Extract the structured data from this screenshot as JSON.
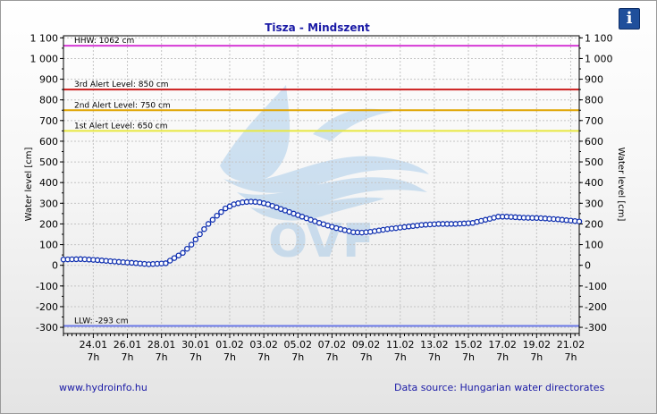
{
  "chart_data": {
    "type": "line",
    "title": "Tisza - Mindszent",
    "ylabel_left": "Water level [cm]",
    "ylabel_right": "Water level [cm]",
    "ylim": [
      -330,
      1110
    ],
    "yticks": [
      -300,
      -200,
      -100,
      0,
      100,
      200,
      300,
      400,
      500,
      600,
      700,
      800,
      900,
      1000,
      1100
    ],
    "ytick_labels": [
      "-300",
      "-200",
      "-100",
      "0",
      "100",
      "200",
      "300",
      "400",
      "500",
      "600",
      "700",
      "800",
      "900",
      "1 000",
      "1 100"
    ],
    "xlim": [
      0,
      30.25
    ],
    "xticks": [
      {
        "x": 1.75,
        "date": "24.01",
        "time": "7h"
      },
      {
        "x": 3.75,
        "date": "26.01",
        "time": "7h"
      },
      {
        "x": 5.75,
        "date": "28.01",
        "time": "7h"
      },
      {
        "x": 7.75,
        "date": "30.01",
        "time": "7h"
      },
      {
        "x": 9.75,
        "date": "01.02",
        "time": "7h"
      },
      {
        "x": 11.75,
        "date": "03.02",
        "time": "7h"
      },
      {
        "x": 13.75,
        "date": "05.02",
        "time": "7h"
      },
      {
        "x": 15.75,
        "date": "07.02",
        "time": "7h"
      },
      {
        "x": 17.75,
        "date": "09.02",
        "time": "7h"
      },
      {
        "x": 19.75,
        "date": "11.02",
        "time": "7h"
      },
      {
        "x": 21.75,
        "date": "13.02",
        "time": "7h"
      },
      {
        "x": 23.75,
        "date": "15.02",
        "time": "7h"
      },
      {
        "x": 25.75,
        "date": "17.02",
        "time": "7h"
      },
      {
        "x": 27.75,
        "date": "19.02",
        "time": "7h"
      },
      {
        "x": 29.75,
        "date": "21.02",
        "time": "7h"
      }
    ],
    "grid": true,
    "reference_lines": [
      {
        "label": "HHW: 1062 cm",
        "value": 1062,
        "color": "#d63ad6"
      },
      {
        "label": "3rd Alert Level: 850 cm",
        "value": 850,
        "color": "#cc1f1f"
      },
      {
        "label": "2nd Alert Level: 750 cm",
        "value": 750,
        "color": "#e0a400"
      },
      {
        "label": "1st Alert Level: 650 cm",
        "value": 650,
        "color": "#e8e840"
      },
      {
        "label": "LLW: -293 cm",
        "value": -293,
        "color": "#6a78e8"
      }
    ],
    "series": [
      {
        "color": "#1030b0",
        "x": [
          0,
          1,
          2,
          3,
          4,
          5,
          6,
          7,
          7.5,
          8,
          8.5,
          9,
          9.5,
          10,
          10.5,
          11,
          11.5,
          12,
          12.5,
          13,
          14,
          15,
          16,
          17,
          17.5,
          18,
          19,
          20,
          21,
          22,
          23,
          24,
          24.5,
          25,
          25.5,
          26,
          27,
          28,
          29,
          30.25
        ],
        "y": [
          28,
          30,
          25,
          18,
          12,
          5,
          10,
          60,
          100,
          150,
          200,
          240,
          275,
          295,
          305,
          308,
          305,
          295,
          280,
          265,
          235,
          205,
          180,
          160,
          158,
          162,
          175,
          185,
          195,
          200,
          200,
          205,
          215,
          225,
          235,
          235,
          230,
          228,
          222,
          212
        ]
      }
    ],
    "watermark_text": "OVF"
  },
  "footer": {
    "website": "www.hydroinfo.hu",
    "source": "Data source: Hungarian water directorates"
  },
  "info_button": {
    "label": "i"
  }
}
